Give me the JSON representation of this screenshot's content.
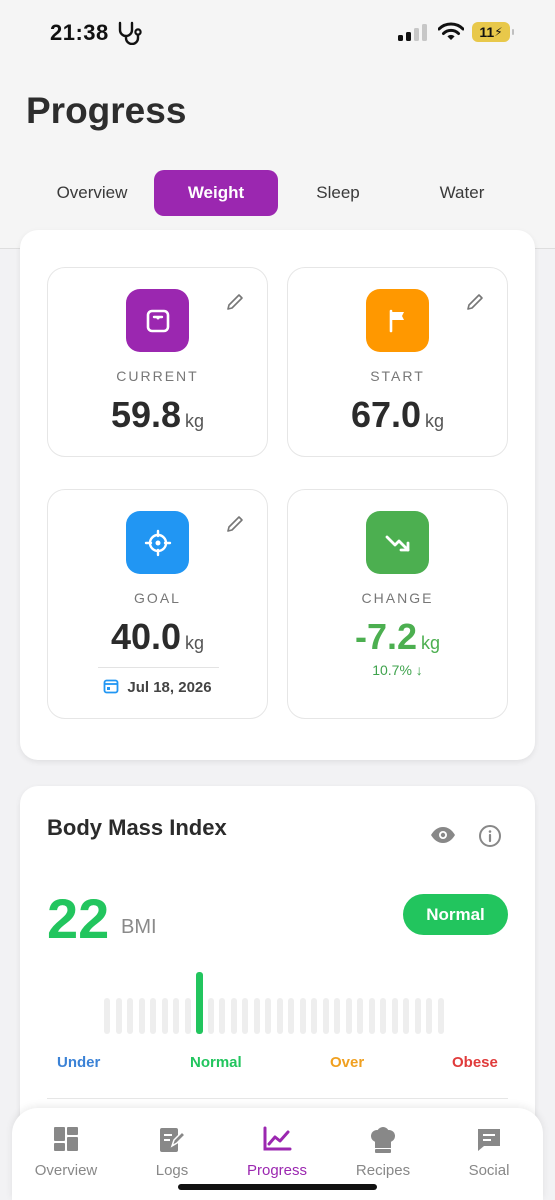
{
  "status_bar": {
    "time": "21:38",
    "battery": "11"
  },
  "header": {
    "title": "Progress",
    "tabs": [
      {
        "label": "Overview",
        "active": false
      },
      {
        "label": "Weight",
        "active": true
      },
      {
        "label": "Sleep",
        "active": false
      },
      {
        "label": "Water",
        "active": false
      }
    ]
  },
  "weight": {
    "current": {
      "label": "CURRENT",
      "value": "59.8",
      "unit": "kg",
      "color": "#9b27b0"
    },
    "start": {
      "label": "START",
      "value": "67.0",
      "unit": "kg",
      "color": "#ff9800"
    },
    "goal": {
      "label": "GOAL",
      "value": "40.0",
      "unit": "kg",
      "date": "Jul 18, 2026",
      "color": "#2196f3"
    },
    "change": {
      "label": "CHANGE",
      "value": "-7.2",
      "unit": "kg",
      "percent": "10.7% ↓",
      "color": "#4caf50"
    }
  },
  "bmi": {
    "title": "Body Mass Index",
    "value": "22",
    "unit": "BMI",
    "status": "Normal",
    "status_color": "#22c55e",
    "categories": [
      {
        "label": "Under",
        "color": "#3b82d6"
      },
      {
        "label": "Normal",
        "color": "#22c55e"
      },
      {
        "label": "Over",
        "color": "#f0a020"
      },
      {
        "label": "Obese",
        "color": "#e03b3b"
      }
    ]
  },
  "nav": {
    "items": [
      {
        "label": "Overview",
        "icon": "dashboard-icon",
        "active": false
      },
      {
        "label": "Logs",
        "icon": "edit-note-icon",
        "active": false
      },
      {
        "label": "Progress",
        "icon": "chart-icon",
        "active": true
      },
      {
        "label": "Recipes",
        "icon": "chef-hat-icon",
        "active": false
      },
      {
        "label": "Social",
        "icon": "chat-icon",
        "active": false
      }
    ]
  }
}
